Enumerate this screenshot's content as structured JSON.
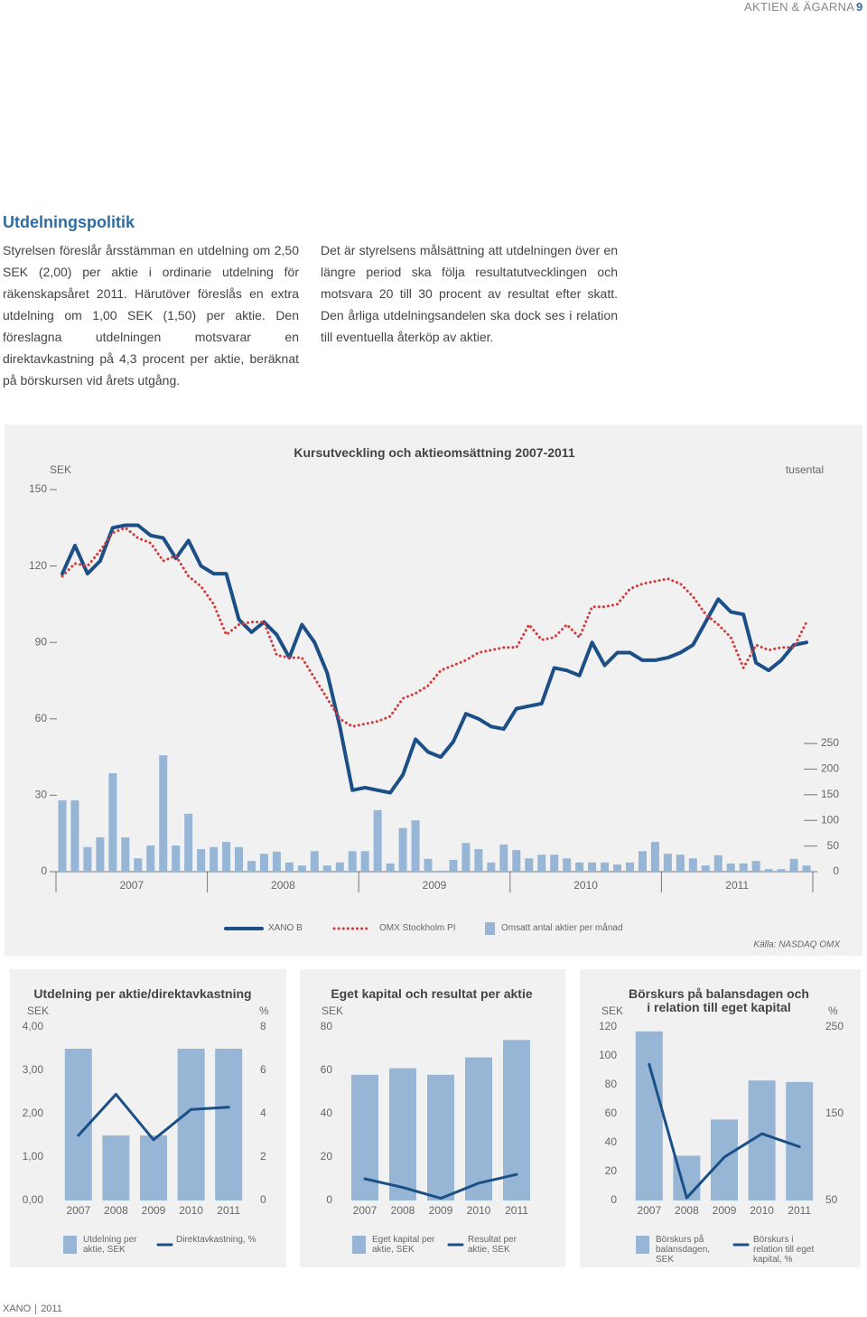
{
  "header": {
    "section": "AKTIEN & ÄGARNA",
    "page": "9"
  },
  "article": {
    "title": "Utdelningspolitik",
    "paragraphs": [
      "Styrelsen föreslår årsstämman en utdelning om 2,50 SEK (2,00) per aktie i ordinarie utdelning för räkenskapsåret 2011. Härutöver föreslås en extra utdelning om 1,00 SEK (1,50) per aktie. Den föreslagna utdelningen motsvarar en direktavkastning på 4,3 procent per aktie, beräknat på börskursen vid årets utgång.",
      "Det är styrelsens målsättning att utdelningen över en längre period ska följa resultatutvecklingen och motsvara 20 till 30 procent av resultat efter skatt. Den årliga utdelningsandelen ska dock ses i relation till eventuella återköp av aktier."
    ]
  },
  "chart_data": [
    {
      "type": "combo",
      "title": "Kursutveckling och aktieomsättning 2007-2011",
      "y_label": "SEK",
      "y2_label": "tusental",
      "source": "Källa: NASDAQ OMX",
      "categories": [
        "2007",
        "2008",
        "2009",
        "2010",
        "2011"
      ],
      "ylim": [
        0,
        150
      ],
      "yticks": [
        0,
        30,
        60,
        90,
        120,
        150
      ],
      "y2lim": [
        0,
        745
      ],
      "y2ticks": [
        0,
        50,
        100,
        150,
        200,
        250
      ],
      "series": [
        {
          "name": "XANO B",
          "type": "line",
          "color": "#1b4f86",
          "values": [
            [
              117,
              128,
              117,
              122,
              135,
              136,
              136,
              132,
              131,
              123,
              130,
              120
            ],
            [
              117,
              117,
              99,
              94,
              98,
              93,
              84,
              97,
              90,
              78,
              57,
              32
            ],
            [
              33,
              32,
              31,
              38,
              52,
              47,
              45,
              51,
              62,
              60,
              57,
              56
            ],
            [
              64,
              65,
              66,
              80,
              79,
              77,
              90,
              81,
              86,
              86,
              83,
              83
            ],
            [
              84,
              86,
              89,
              98,
              107,
              102,
              101,
              82,
              79,
              83,
              89,
              90
            ]
          ]
        },
        {
          "name": "OMX Stockholm PI",
          "type": "line",
          "style": "dotted",
          "color": "#d23b3b",
          "values": [
            [
              116,
              121,
              120,
              126,
              133,
              135,
              131,
              129,
              122,
              124,
              116,
              112
            ],
            [
              105,
              93,
              97,
              98,
              98,
              85,
              84,
              84,
              76,
              68,
              60,
              57
            ],
            [
              58,
              59,
              61,
              68,
              70,
              73,
              79,
              81,
              83,
              86,
              87,
              88
            ],
            [
              88,
              97,
              91,
              92,
              97,
              92,
              104,
              104,
              105,
              111,
              113,
              114
            ],
            [
              115,
              113,
              108,
              101,
              97,
              92,
              80,
              89,
              87,
              88,
              88,
              98
            ]
          ]
        },
        {
          "name": "Omsatt antal aktier per månad",
          "type": "bar",
          "axis": "y2",
          "color": "#97b6d6",
          "values": [
            [
              139,
              139,
              48,
              67,
              192,
              67,
              26,
              51,
              227,
              51,
              113,
              44
            ],
            [
              48,
              58,
              48,
              21,
              35,
              39,
              18,
              12,
              40,
              12,
              18,
              40
            ],
            [
              40,
              120,
              16,
              85,
              100,
              25,
              2,
              23,
              56,
              44,
              18,
              53
            ],
            [
              42,
              26,
              33,
              33,
              26,
              18,
              18,
              18,
              14,
              18,
              40,
              58
            ],
            [
              35,
              33,
              26,
              12,
              32,
              16,
              16,
              21,
              5,
              5,
              25,
              12
            ]
          ]
        }
      ]
    },
    {
      "type": "combo",
      "title": "Utdelning per aktie/direktavkastning",
      "y_label": "SEK",
      "y2_label": "%",
      "categories": [
        "2007",
        "2008",
        "2009",
        "2010",
        "2011"
      ],
      "ylim": [
        0,
        4
      ],
      "yticks": [
        {
          "value": 0,
          "label": "0,00"
        },
        {
          "value": 1,
          "label": "1,00"
        },
        {
          "value": 2,
          "label": "2,00"
        },
        {
          "value": 3,
          "label": "3,00"
        },
        {
          "value": 4,
          "label": "4,00"
        }
      ],
      "y2lim": [
        0,
        8
      ],
      "y2ticks": [
        0,
        2,
        4,
        6,
        8
      ],
      "series": [
        {
          "name": "Utdelning per aktie, SEK",
          "type": "bar",
          "color": "#97b6d6",
          "values": [
            3.5,
            1.5,
            1.5,
            3.5,
            3.5
          ]
        },
        {
          "name": "Direktavkastning, %",
          "type": "line",
          "axis": "y2",
          "color": "#1b4f86",
          "values": [
            3.0,
            4.9,
            2.8,
            4.2,
            4.3
          ]
        }
      ]
    },
    {
      "type": "combo",
      "title": "Eget kapital och resultat per aktie",
      "y_label": "SEK",
      "categories": [
        "2007",
        "2008",
        "2009",
        "2010",
        "2011"
      ],
      "ylim": [
        0,
        80
      ],
      "yticks": [
        0,
        20,
        40,
        60,
        80
      ],
      "series": [
        {
          "name": "Eget kapital per aktie, SEK",
          "type": "bar",
          "color": "#97b6d6",
          "values": [
            58,
            61,
            58,
            66,
            74
          ]
        },
        {
          "name": "Resultat per aktie, SEK",
          "type": "line",
          "color": "#1b4f86",
          "values": [
            10,
            6,
            1,
            8,
            12
          ]
        }
      ]
    },
    {
      "type": "combo",
      "title": "Börskurs på balansdagen och i relation till eget kapital",
      "y_label": "SEK",
      "y2_label": "%",
      "categories": [
        "2007",
        "2008",
        "2009",
        "2010",
        "2011"
      ],
      "ylim": [
        0,
        120
      ],
      "yticks": [
        0,
        20,
        40,
        60,
        80,
        100,
        120
      ],
      "y2lim": [
        50,
        250
      ],
      "y2ticks": [
        50,
        150,
        250
      ],
      "series": [
        {
          "name": "Börskurs på balansdagen, SEK",
          "type": "bar",
          "color": "#97b6d6",
          "values": [
            117,
            31,
            56,
            83,
            82
          ]
        },
        {
          "name": "Börskurs i relation till eget kapital, %",
          "type": "line",
          "axis": "y2",
          "color": "#1b4f86",
          "values": [
            207,
            53,
            100,
            127,
            112
          ]
        }
      ]
    }
  ],
  "footer": {
    "company": "XANO",
    "year": "2011"
  }
}
